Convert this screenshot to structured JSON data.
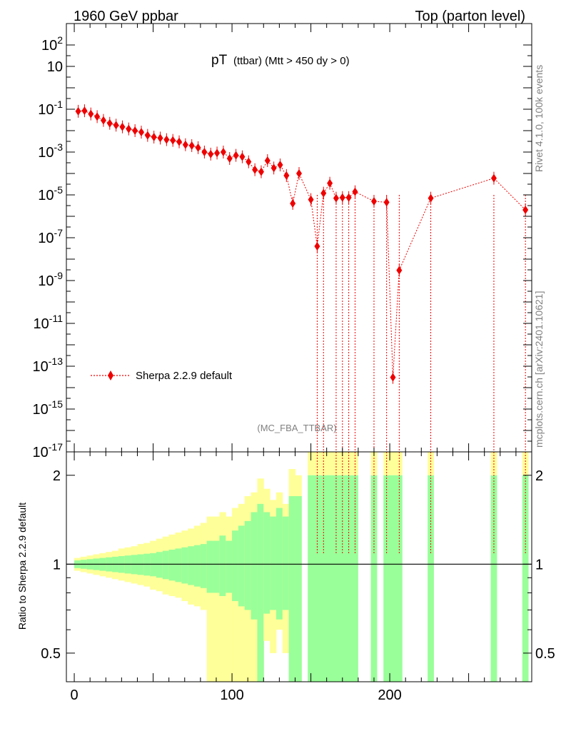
{
  "header": {
    "left": "1960 GeV ppbar",
    "right": "Top (parton level)"
  },
  "title": {
    "main": "pT",
    "sub": "(ttbar) (Mtt > 450 dy > 0)"
  },
  "side_text": {
    "rivet": "Rivet 4.1.0,  100k events",
    "mcplots": "mcplots.cern.ch [arXiv:2401.10621]"
  },
  "analysis_label": "(MC_FBA_TTBAR)",
  "legend": {
    "label": "Sherpa 2.2.9 default"
  },
  "ratio_ylabel": "Ratio to Sherpa 2.2.9 default",
  "colors": {
    "series": "#ee0000",
    "band_outer": "#ffff99",
    "band_inner": "#99ff99"
  },
  "chart_data": {
    "type": "line",
    "title": "pT (ttbar) (Mtt > 450 dy > 0)",
    "xlim": [
      -5,
      290
    ],
    "main_y_log_range": [
      1e-17,
      1000
    ],
    "ratio_ylim": [
      0.4,
      2.4
    ],
    "y_tick_labels": [
      "10^2",
      "10",
      "10^-1",
      "10^-3",
      "10^-5",
      "10^-7",
      "10^-9",
      "10^-11",
      "10^-13",
      "10^-15",
      "10^-17"
    ],
    "x_tick_labels": [
      "0",
      "100",
      "200"
    ],
    "ratio_tick_labels": [
      "0.5",
      "1",
      "2"
    ],
    "series": [
      {
        "name": "Sherpa 2.2.9 default",
        "x": [
          2.5,
          6.5,
          10.5,
          14.5,
          18.5,
          22.5,
          26.5,
          30.5,
          34.5,
          38.5,
          42.5,
          46.5,
          50.5,
          54.5,
          58.5,
          62.5,
          66.5,
          70.5,
          74.5,
          78.5,
          82.5,
          86.5,
          90.5,
          94.5,
          98.5,
          102.5,
          106.5,
          110.5,
          114.5,
          118.5,
          122.5,
          126.5,
          130.5,
          134.5,
          138.5,
          142.5,
          150.0,
          154.0,
          158.0,
          162.0,
          166.0,
          170.0,
          174.0,
          178.0,
          190.0,
          198.0,
          202.0,
          206.0,
          226.0,
          266.0,
          286.0
        ],
        "y": [
          0.08,
          0.085,
          0.06,
          0.045,
          0.03,
          0.022,
          0.018,
          0.015,
          0.012,
          0.01,
          0.0085,
          0.006,
          0.005,
          0.0045,
          0.0038,
          0.0035,
          0.003,
          0.0022,
          0.002,
          0.0016,
          0.001,
          0.0008,
          0.0009,
          0.001,
          0.0005,
          0.0007,
          0.0006,
          0.00035,
          0.00015,
          0.00012,
          0.0004,
          0.00018,
          0.00025,
          8e-05,
          4e-06,
          0.0001,
          6e-06,
          4e-08,
          1.2e-05,
          3.5e-05,
          7e-06,
          7.5e-06,
          7.5e-06,
          1.4e-05,
          5e-06,
          4.5e-06,
          3e-14,
          3e-09,
          7e-06,
          6e-05,
          2e-06
        ]
      }
    ],
    "ratio_bands": {
      "edges": [
        0,
        4,
        8,
        12,
        16,
        20,
        24,
        28,
        32,
        36,
        40,
        44,
        48,
        52,
        56,
        60,
        64,
        68,
        72,
        76,
        80,
        84,
        88,
        92,
        96,
        100,
        104,
        108,
        112,
        116,
        120,
        124,
        128,
        132,
        136,
        140,
        144
      ],
      "outer_hi": [
        1.05,
        1.06,
        1.07,
        1.08,
        1.09,
        1.1,
        1.11,
        1.13,
        1.14,
        1.15,
        1.17,
        1.18,
        1.2,
        1.22,
        1.24,
        1.26,
        1.28,
        1.3,
        1.32,
        1.35,
        1.38,
        1.45,
        1.45,
        1.5,
        1.45,
        1.55,
        1.6,
        1.7,
        1.75,
        1.95,
        1.8,
        1.65,
        1.75,
        1.6,
        2.1,
        2.0
      ],
      "outer_lo": [
        0.95,
        0.94,
        0.93,
        0.92,
        0.91,
        0.9,
        0.89,
        0.88,
        0.87,
        0.86,
        0.85,
        0.84,
        0.82,
        0.81,
        0.79,
        0.78,
        0.77,
        0.75,
        0.73,
        0.72,
        0.7,
        0.4,
        0.4,
        0.4,
        0.4,
        0.4,
        0.4,
        0.4,
        0.4,
        0.4,
        0.55,
        0.5,
        0.6,
        0.5,
        0.4,
        0.4
      ],
      "inner_hi": [
        1.03,
        1.035,
        1.04,
        1.045,
        1.05,
        1.055,
        1.06,
        1.065,
        1.07,
        1.075,
        1.08,
        1.085,
        1.09,
        1.1,
        1.11,
        1.12,
        1.13,
        1.14,
        1.15,
        1.16,
        1.17,
        1.2,
        1.2,
        1.25,
        1.2,
        1.3,
        1.35,
        1.4,
        1.5,
        1.6,
        1.5,
        1.45,
        1.55,
        1.45,
        1.7,
        1.7
      ],
      "inner_lo": [
        0.97,
        0.965,
        0.96,
        0.955,
        0.95,
        0.945,
        0.94,
        0.935,
        0.93,
        0.925,
        0.92,
        0.915,
        0.91,
        0.9,
        0.89,
        0.88,
        0.87,
        0.86,
        0.85,
        0.84,
        0.83,
        0.8,
        0.8,
        0.78,
        0.8,
        0.75,
        0.72,
        0.7,
        0.65,
        0.4,
        0.68,
        0.7,
        0.65,
        0.7,
        0.4,
        0.4
      ],
      "full_bins": [
        [
          148,
          180
        ],
        [
          188,
          192
        ],
        [
          196,
          208
        ],
        [
          224,
          228
        ],
        [
          264,
          268
        ],
        [
          284,
          288
        ]
      ]
    }
  }
}
